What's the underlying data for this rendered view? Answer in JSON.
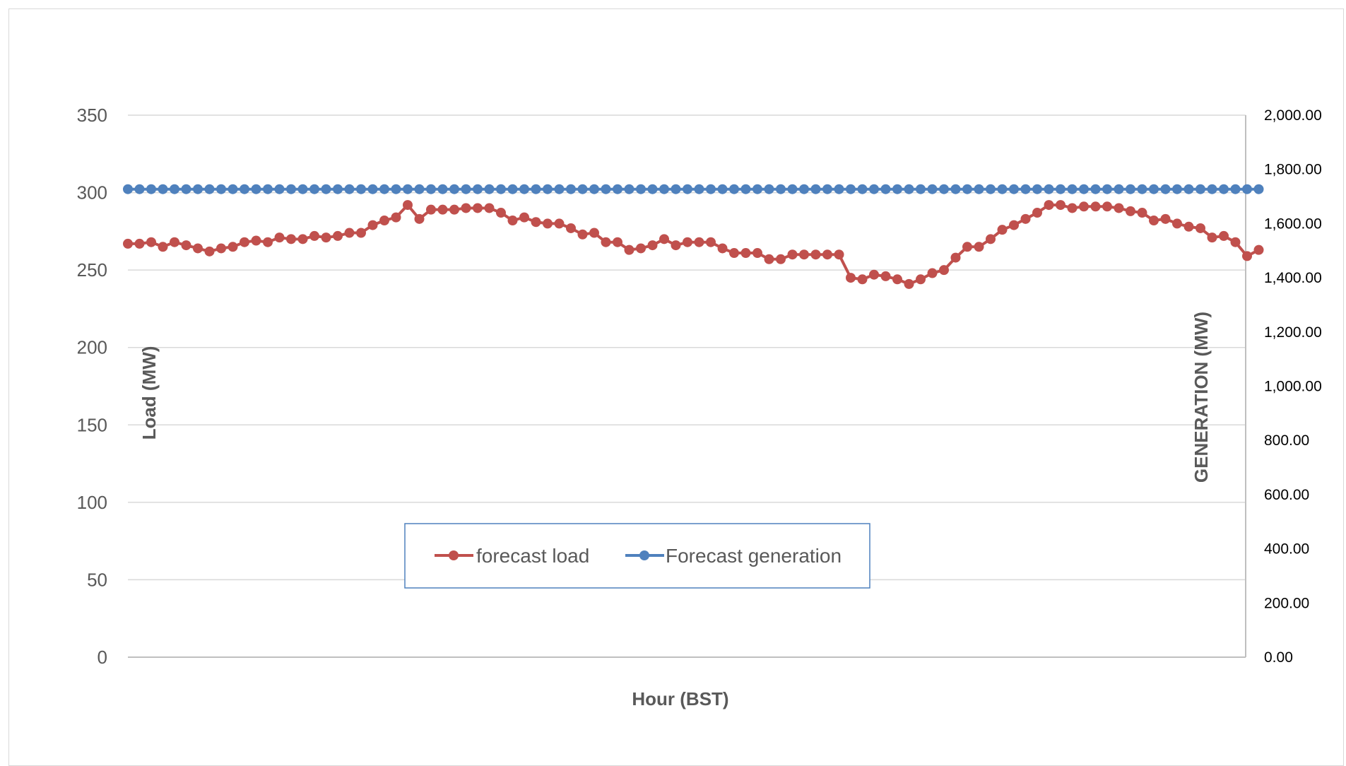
{
  "chart_data": {
    "type": "line",
    "title": "",
    "xlabel": "Hour (BST)",
    "ylabel": "Load (MW)",
    "y2label": "GENERATION (MW)",
    "ylim": [
      0,
      350
    ],
    "y2lim": [
      0,
      2000
    ],
    "yticks": [
      "0",
      "50",
      "100",
      "150",
      "200",
      "250",
      "300",
      "350"
    ],
    "y2ticks": [
      "0.00",
      "200.00",
      "400.00",
      "600.00",
      "800.00",
      "1,000.00",
      "1,200.00",
      "1,400.00",
      "1,600.00",
      "1,800.00",
      "2,000.00"
    ],
    "grid": true,
    "legend_position": "bottom-center",
    "series": [
      {
        "name": "forecast load",
        "color": "#c0504d",
        "axis": "left",
        "values": [
          267,
          267,
          268,
          265,
          268,
          266,
          264,
          262,
          264,
          265,
          268,
          269,
          268,
          271,
          270,
          270,
          272,
          271,
          272,
          274,
          274,
          279,
          282,
          284,
          292,
          283,
          289,
          289,
          289,
          290,
          290,
          290,
          287,
          282,
          284,
          281,
          280,
          280,
          277,
          273,
          274,
          268,
          268,
          263,
          264,
          266,
          270,
          266,
          268,
          268,
          268,
          264,
          261,
          261,
          261,
          257,
          257,
          260,
          260,
          260,
          260,
          260,
          245,
          244,
          247,
          246,
          244,
          241,
          244,
          248,
          250,
          258,
          265,
          265,
          270,
          276,
          279,
          283,
          287,
          292,
          292,
          290,
          291,
          291,
          291,
          290,
          288,
          287,
          282,
          283,
          280,
          278,
          277,
          271,
          272,
          268,
          259,
          263
        ]
      },
      {
        "name": "Forecast generation",
        "color": "#4f81bd",
        "axis": "right",
        "constant": 1727,
        "count": 98
      }
    ]
  }
}
